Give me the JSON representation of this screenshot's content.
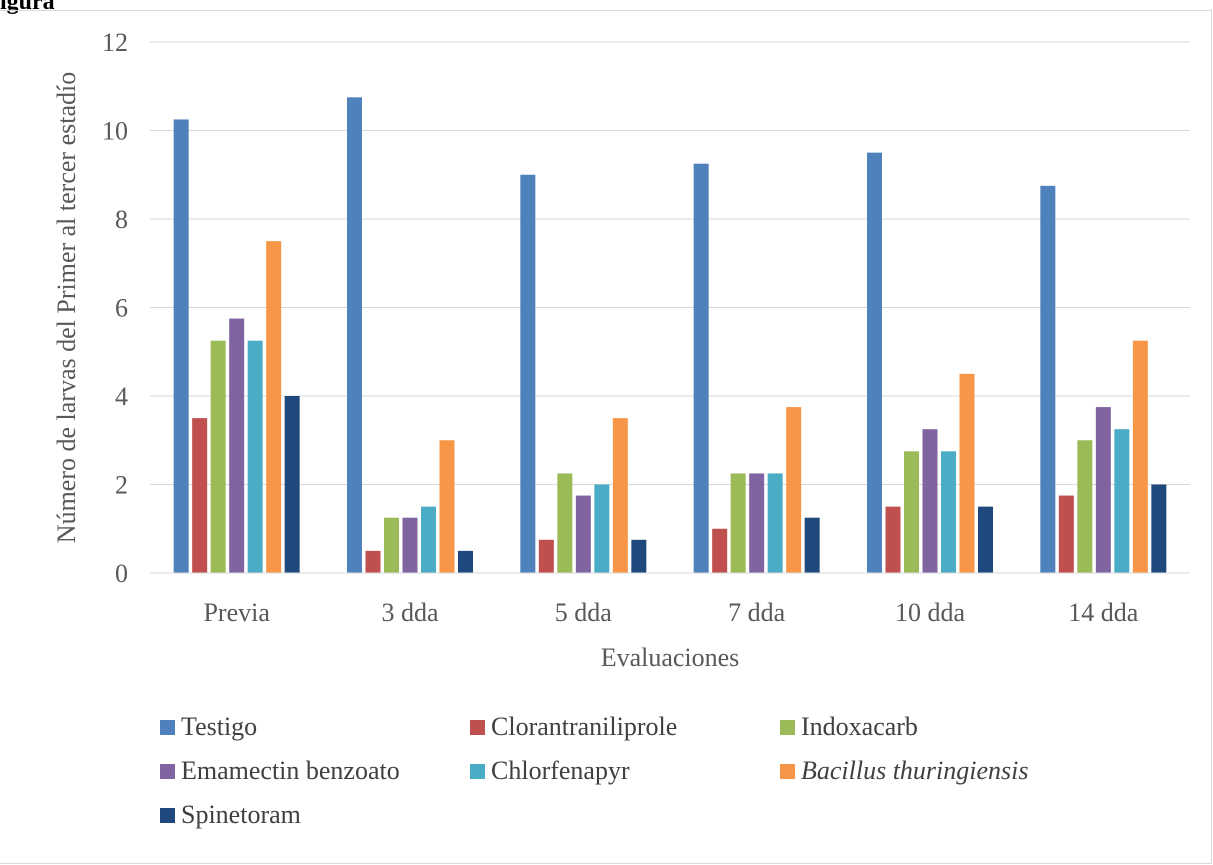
{
  "heading_fragment": "igura",
  "chart_data": {
    "type": "bar",
    "title": "",
    "xlabel": "Evaluaciones",
    "ylabel": "Número de larvas del Primer al tercer estadío",
    "ylim": [
      0,
      12
    ],
    "yticks": [
      0,
      2,
      4,
      6,
      8,
      10,
      12
    ],
    "grid": true,
    "legend_position": "bottom",
    "categories": [
      "Previa",
      "3 dda",
      "5 dda",
      "7 dda",
      "10 dda",
      "14 dda"
    ],
    "series": [
      {
        "name": "Testigo",
        "color": "#4f81bd",
        "italic": false,
        "values": [
          10.25,
          10.75,
          9.0,
          9.25,
          9.5,
          8.75
        ]
      },
      {
        "name": "Clorantraniliprole",
        "color": "#c0504d",
        "italic": false,
        "values": [
          3.5,
          0.5,
          0.75,
          1.0,
          1.5,
          1.75
        ]
      },
      {
        "name": "Indoxacarb",
        "color": "#9bbb59",
        "italic": false,
        "values": [
          5.25,
          1.25,
          2.25,
          2.25,
          2.75,
          3.0
        ]
      },
      {
        "name": "Emamectin benzoato",
        "color": "#8064a2",
        "italic": false,
        "values": [
          5.75,
          1.25,
          1.75,
          2.25,
          3.25,
          3.75
        ]
      },
      {
        "name": "Chlorfenapyr",
        "color": "#4bacc6",
        "italic": false,
        "values": [
          5.25,
          1.5,
          2.0,
          2.25,
          2.75,
          3.25
        ]
      },
      {
        "name": "Bacillus thuringiensis",
        "color": "#f79646",
        "italic": true,
        "values": [
          7.5,
          3.0,
          3.5,
          3.75,
          4.5,
          5.25
        ]
      },
      {
        "name": "Spinetoram",
        "color": "#1f497d",
        "italic": false,
        "values": [
          4.0,
          0.5,
          0.75,
          1.25,
          1.5,
          2.0
        ]
      }
    ]
  }
}
